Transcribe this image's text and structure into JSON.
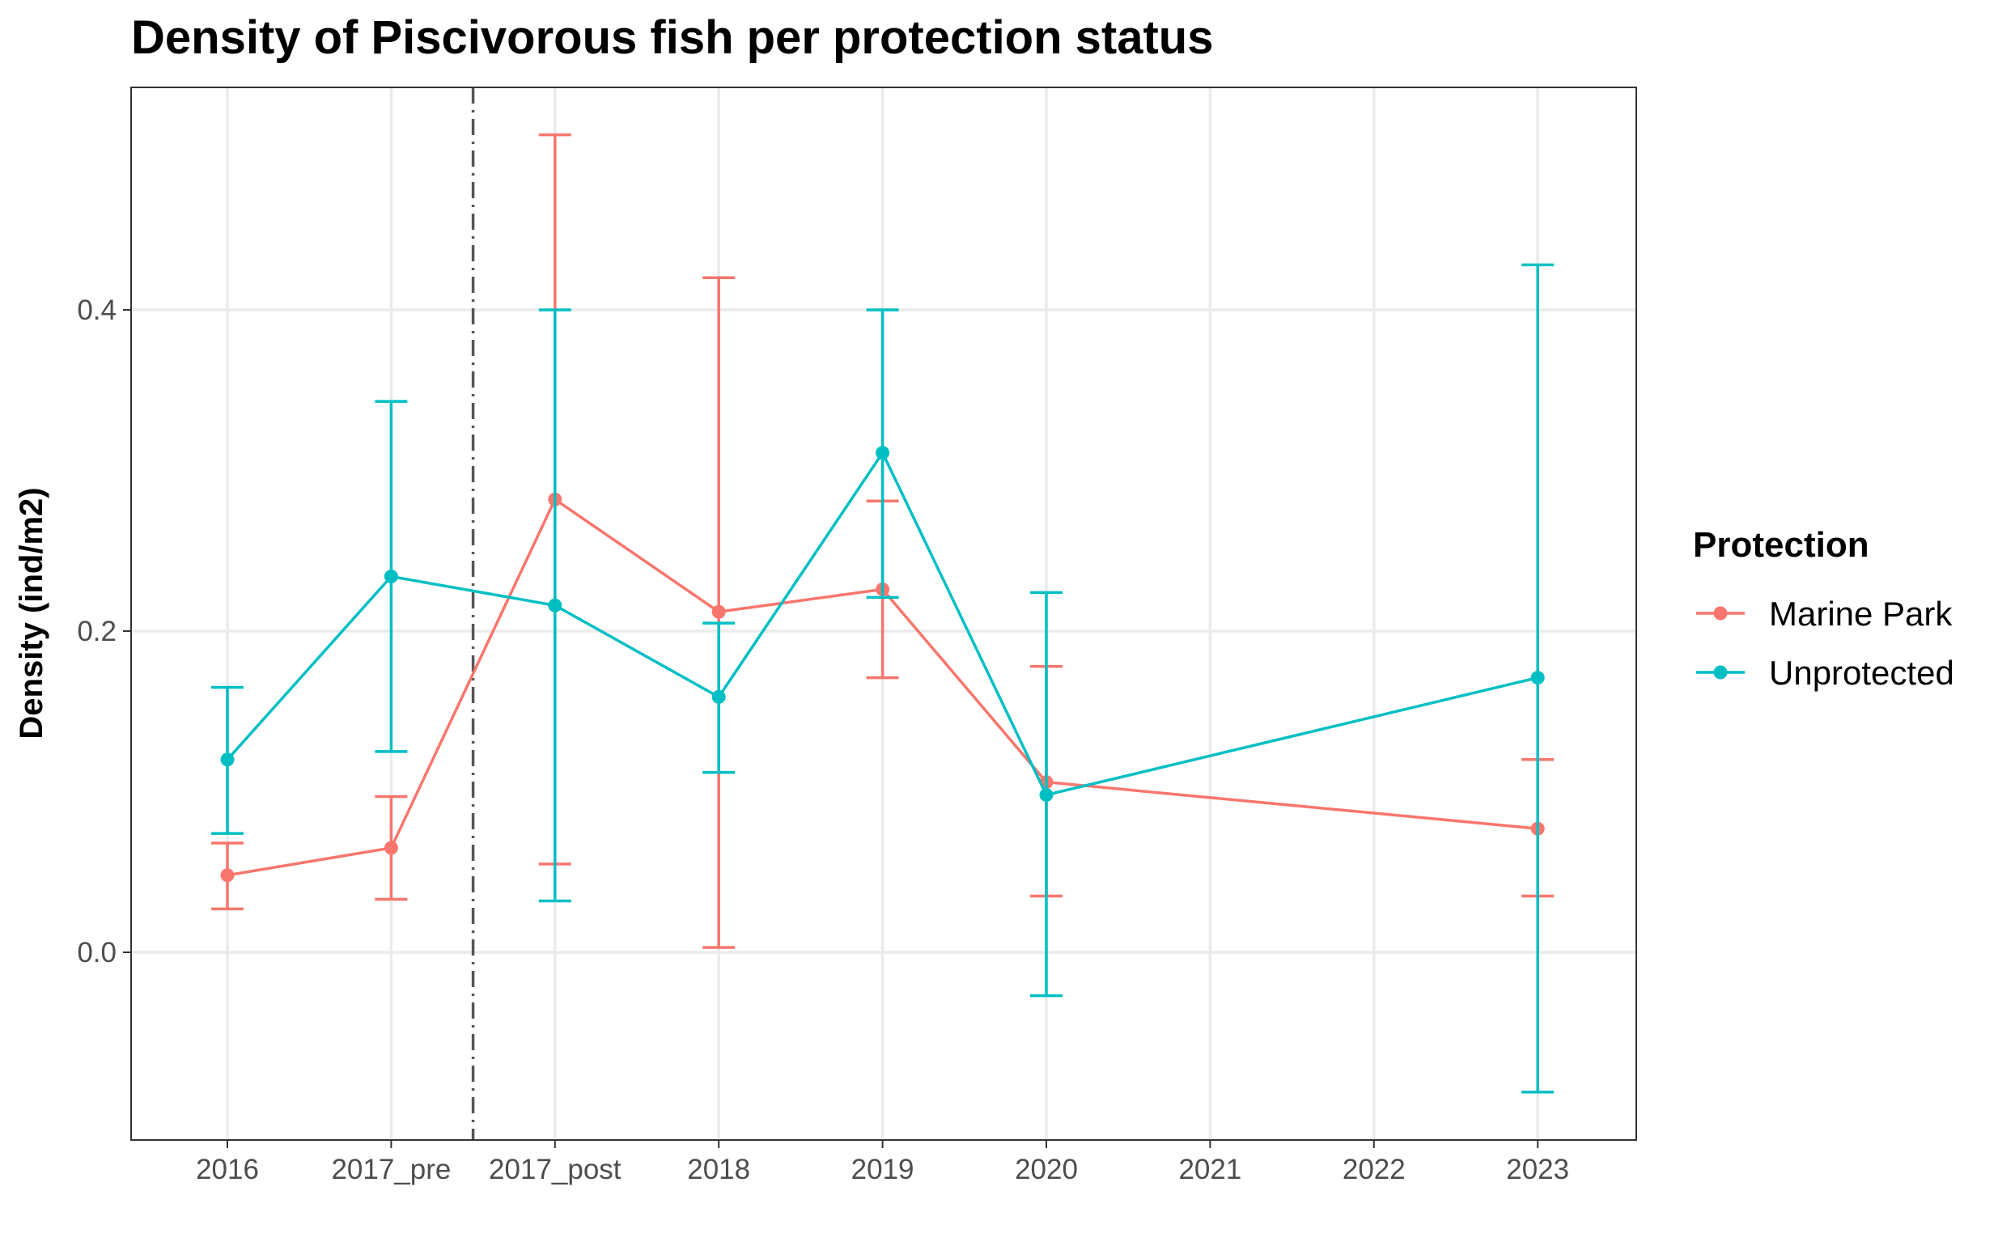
{
  "chart_data": {
    "type": "line",
    "title": "Density of Piscivorous fish per protection status",
    "xlabel": "",
    "ylabel": "Density (ind/m2)",
    "categories": [
      "2016",
      "2017_pre",
      "2017_post",
      "2018",
      "2019",
      "2020",
      "2021",
      "2022",
      "2023"
    ],
    "ylim": [
      -0.115,
      0.54
    ],
    "yticks": [
      0.0,
      0.2,
      0.4
    ],
    "ytick_labels": [
      "0.0",
      "0.2",
      "0.4"
    ],
    "grid": true,
    "vline": {
      "between": [
        "2017_pre",
        "2017_post"
      ],
      "style": "dashdot",
      "color": "#555555"
    },
    "legend": {
      "title": "Protection",
      "position": "right"
    },
    "series": [
      {
        "name": "Marine Park",
        "color": "#F8766D",
        "points": [
          {
            "x": "2016",
            "y": 0.048,
            "ymin": 0.027,
            "ymax": 0.068
          },
          {
            "x": "2017_pre",
            "y": 0.065,
            "ymin": 0.033,
            "ymax": 0.097
          },
          {
            "x": "2017_post",
            "y": 0.282,
            "ymin": 0.055,
            "ymax": 0.509
          },
          {
            "x": "2018",
            "y": 0.212,
            "ymin": 0.003,
            "ymax": 0.42
          },
          {
            "x": "2019",
            "y": 0.226,
            "ymin": 0.171,
            "ymax": 0.281
          },
          {
            "x": "2020",
            "y": 0.106,
            "ymin": 0.035,
            "ymax": 0.178
          },
          {
            "x": "2023",
            "y": 0.077,
            "ymin": 0.035,
            "ymax": 0.12
          }
        ]
      },
      {
        "name": "Unprotected",
        "color": "#00BFC4",
        "points": [
          {
            "x": "2016",
            "y": 0.12,
            "ymin": 0.074,
            "ymax": 0.165
          },
          {
            "x": "2017_pre",
            "y": 0.234,
            "ymin": 0.125,
            "ymax": 0.343
          },
          {
            "x": "2017_post",
            "y": 0.216,
            "ymin": 0.032,
            "ymax": 0.4
          },
          {
            "x": "2018",
            "y": 0.159,
            "ymin": 0.112,
            "ymax": 0.205
          },
          {
            "x": "2019",
            "y": 0.311,
            "ymin": 0.221,
            "ymax": 0.4
          },
          {
            "x": "2020",
            "y": 0.098,
            "ymin": -0.027,
            "ymax": 0.224
          },
          {
            "x": "2023",
            "y": 0.171,
            "ymin": -0.087,
            "ymax": 0.428
          }
        ]
      }
    ]
  }
}
